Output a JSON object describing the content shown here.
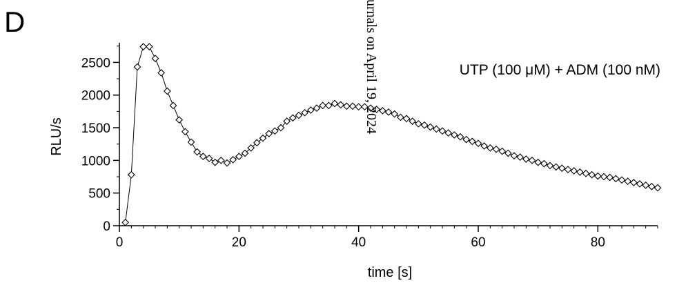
{
  "panel_label": "D",
  "watermark_text": "urnals on April 19, 2024",
  "chart_data": {
    "type": "line",
    "title": "",
    "xlabel": "time [s]",
    "ylabel": "RLU/s",
    "xlim": [
      0,
      90
    ],
    "ylim": [
      0,
      2800
    ],
    "xticks": [
      0,
      20,
      40,
      60,
      80
    ],
    "xtick_labels": [
      "0",
      "20",
      "40",
      "60",
      "80"
    ],
    "yticks": [
      0,
      500,
      1000,
      1500,
      2000,
      2500
    ],
    "ytick_labels": [
      "0",
      "500",
      "1000",
      "1500",
      "2000",
      "2500"
    ],
    "x_minor_step": 2,
    "y_minor_step": 250,
    "grid": false,
    "marker": "open-diamond",
    "annotation": "UTP (100 μM) + ADM (100 nM)",
    "series": [
      {
        "name": "",
        "x": [
          1,
          2,
          3,
          4,
          5,
          6,
          7,
          8,
          9,
          10,
          11,
          12,
          13,
          14,
          15,
          16,
          17,
          18,
          19,
          20,
          21,
          22,
          23,
          24,
          25,
          26,
          27,
          28,
          29,
          30,
          31,
          32,
          33,
          34,
          35,
          36,
          37,
          38,
          39,
          40,
          41,
          42,
          43,
          44,
          45,
          46,
          47,
          48,
          49,
          50,
          51,
          52,
          53,
          54,
          55,
          56,
          57,
          58,
          59,
          60,
          61,
          62,
          63,
          64,
          65,
          66,
          67,
          68,
          69,
          70,
          71,
          72,
          73,
          74,
          75,
          76,
          77,
          78,
          79,
          80,
          81,
          82,
          83,
          84,
          85,
          86,
          87,
          88,
          89,
          90
        ],
        "y": [
          50,
          780,
          2430,
          2740,
          2740,
          2560,
          2340,
          2060,
          1840,
          1620,
          1440,
          1280,
          1130,
          1060,
          1030,
          970,
          1000,
          960,
          1010,
          1060,
          1110,
          1190,
          1270,
          1340,
          1410,
          1450,
          1500,
          1600,
          1650,
          1690,
          1730,
          1770,
          1800,
          1840,
          1840,
          1870,
          1850,
          1830,
          1830,
          1820,
          1820,
          1800,
          1780,
          1760,
          1740,
          1710,
          1660,
          1640,
          1600,
          1560,
          1540,
          1510,
          1480,
          1450,
          1420,
          1390,
          1360,
          1320,
          1290,
          1260,
          1220,
          1190,
          1170,
          1140,
          1110,
          1070,
          1050,
          1020,
          1000,
          970,
          950,
          920,
          900,
          880,
          860,
          840,
          820,
          800,
          780,
          760,
          750,
          740,
          720,
          700,
          680,
          660,
          640,
          620,
          600,
          580
        ]
      }
    ]
  }
}
